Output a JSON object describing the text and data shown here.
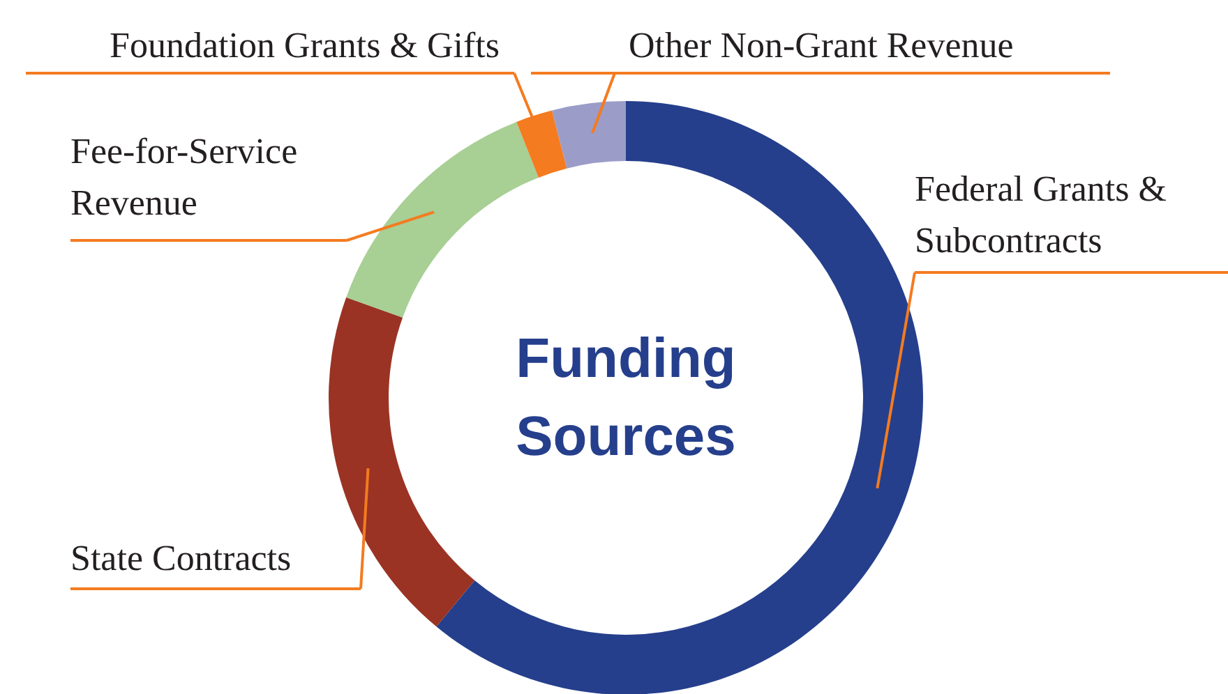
{
  "chart_data": {
    "type": "donut",
    "title": "Funding Sources",
    "categories": [
      "Federal Grants & Subcontracts",
      "State Contracts",
      "Fee-for-Service Revenue",
      "Foundation Grants & Gifts",
      "Other Non-Grant Revenue"
    ],
    "values": [
      61,
      19.5,
      13.5,
      2,
      4
    ],
    "colors": [
      "#253f8c",
      "#9a3324",
      "#a8cf94",
      "#f47b20",
      "#9b9dc8"
    ]
  }
}
